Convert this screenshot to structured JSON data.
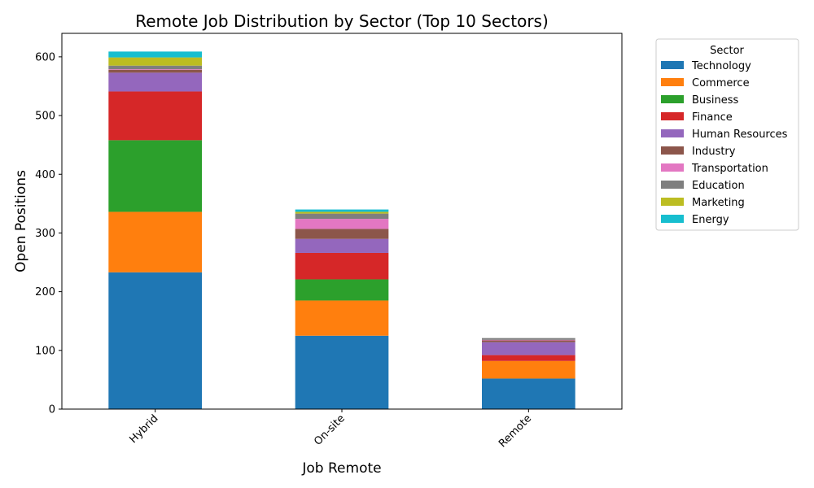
{
  "chart_data": {
    "type": "bar",
    "stacked": true,
    "title": "Remote Job Distribution by Sector (Top 10 Sectors)",
    "xlabel": "Job Remote",
    "ylabel": "Open Positions",
    "ylim": [
      0,
      640
    ],
    "yticks": [
      0,
      100,
      200,
      300,
      400,
      500,
      600
    ],
    "categories": [
      "Hybrid",
      "On-site",
      "Remote"
    ],
    "legend_title": "Sector",
    "legend_position": "outside-right-top",
    "grid": false,
    "series": [
      {
        "name": "Technology",
        "color": "#1f77b4",
        "values": [
          233,
          125,
          52
        ]
      },
      {
        "name": "Commerce",
        "color": "#ff7f0e",
        "values": [
          103,
          60,
          30
        ]
      },
      {
        "name": "Business",
        "color": "#2ca02c",
        "values": [
          122,
          36,
          0
        ]
      },
      {
        "name": "Finance",
        "color": "#d62728",
        "values": [
          83,
          45,
          10
        ]
      },
      {
        "name": "Human Resources",
        "color": "#9467bd",
        "values": [
          32,
          24,
          22
        ]
      },
      {
        "name": "Industry",
        "color": "#8c564b",
        "values": [
          5,
          17,
          3
        ]
      },
      {
        "name": "Transportation",
        "color": "#e377c2",
        "values": [
          1,
          17,
          1
        ]
      },
      {
        "name": "Education",
        "color": "#7f7f7f",
        "values": [
          6,
          9,
          3
        ]
      },
      {
        "name": "Marketing",
        "color": "#bcbd22",
        "values": [
          14,
          3,
          0
        ]
      },
      {
        "name": "Energy",
        "color": "#17becf",
        "values": [
          10,
          4,
          0
        ]
      }
    ]
  }
}
